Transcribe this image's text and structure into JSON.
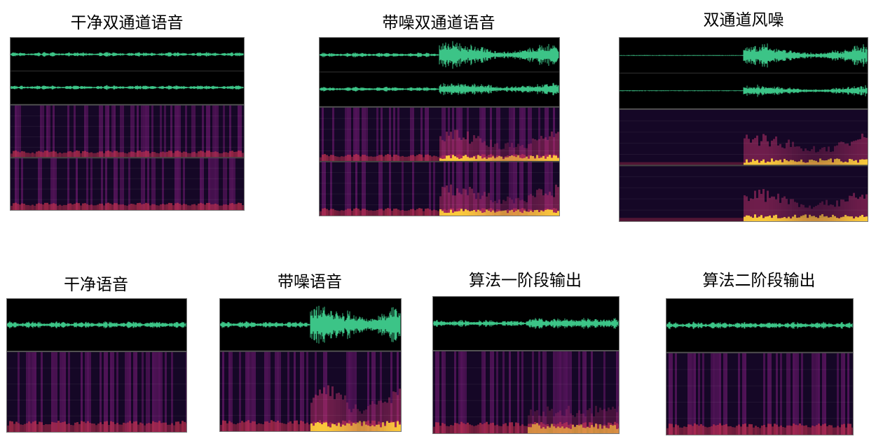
{
  "panels": [
    {
      "title": "干净双通道语音",
      "channels": 2,
      "noise": "none",
      "colors": {
        "wave": "#3fcf8e"
      }
    },
    {
      "title": "带噪双通道语音",
      "channels": 2,
      "noise": "second-half"
    },
    {
      "title": "双通道风噪",
      "channels": 2,
      "noise": "noise-only"
    },
    {
      "title": "干净语音",
      "channels": 1,
      "noise": "none"
    },
    {
      "title": "带噪语音",
      "channels": 1,
      "noise": "second-half"
    },
    {
      "title": "算法一阶段输出",
      "channels": 1,
      "noise": "residual"
    },
    {
      "title": "算法二阶段输出",
      "channels": 1,
      "noise": "clean"
    }
  ],
  "colors": {
    "wave": "#3fcf8e",
    "background": "#000000",
    "spectro_low": "#1a0830",
    "spectro_high": "#ffd23a"
  }
}
